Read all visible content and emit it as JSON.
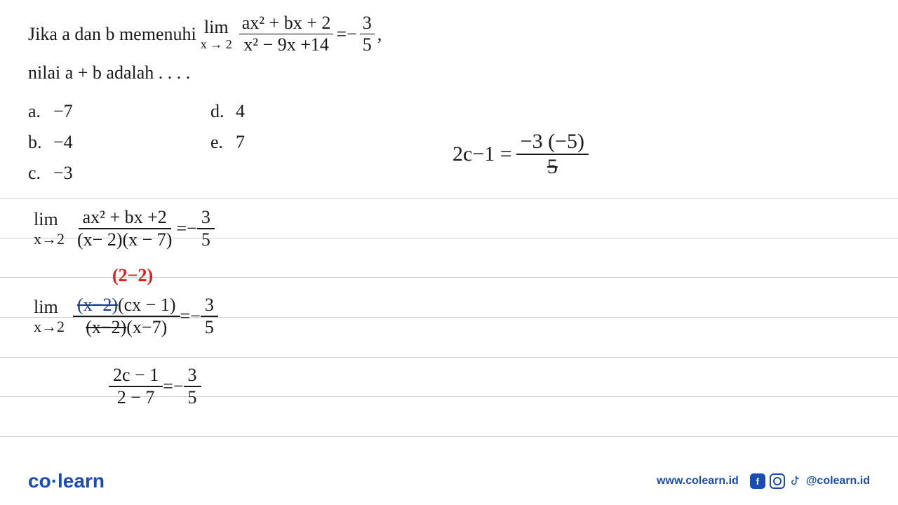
{
  "ruled_line_positions": [
    282,
    339,
    395,
    452,
    509,
    565,
    622
  ],
  "ruled_line_color": "#d0d0d0",
  "problem": {
    "prefix": "Jika  a  dan  b  memenuhi",
    "lim_text": "lim",
    "lim_sub": "x → 2",
    "frac_num": "ax² + bx + 2",
    "frac_den": "x² − 9x +14",
    "equals": " = ",
    "rhs_sign": "−",
    "rhs_num": "3",
    "rhs_den": "5",
    "rhs_suffix": ",",
    "line2": "nilai a + b adalah . . . ."
  },
  "options": {
    "a": "−7",
    "b": "−4",
    "c": "−3",
    "d": "4",
    "e": "7"
  },
  "handwriting": {
    "step1": {
      "lim": "lim",
      "limsub": "x→2",
      "num": "ax² + bx +2",
      "den": "(x− 2)(x − 7)",
      "eq": " = ",
      "rnum": "3",
      "rden": "5",
      "rsign": "−"
    },
    "red_note": "(2−2)",
    "step2": {
      "lim": "lim",
      "limsub": "x→2",
      "num_a": "(x−2)",
      "num_b": "(cx − 1)",
      "den_a": "(x−2)",
      "den_b": "(x−7)",
      "eq": " = ",
      "rnum": "3",
      "rden": "5",
      "rsign": "−"
    },
    "step3": {
      "num": "2c − 1",
      "den": "2 − 7",
      "eq": " = ",
      "rnum": "3",
      "rden": "5",
      "rsign": "−"
    },
    "right_side": {
      "lhs": "2c−1 = ",
      "num": "−3 (−5)",
      "den": "5"
    }
  },
  "footer": {
    "logo_a": "co",
    "logo_dot": "·",
    "logo_b": "learn",
    "website": "www.colearn.id",
    "handle": "@colearn.id"
  },
  "colors": {
    "text": "#1a1a1a",
    "brand": "#1a4db3",
    "red": "#d82020",
    "blue_ink": "#1a3a8a"
  }
}
